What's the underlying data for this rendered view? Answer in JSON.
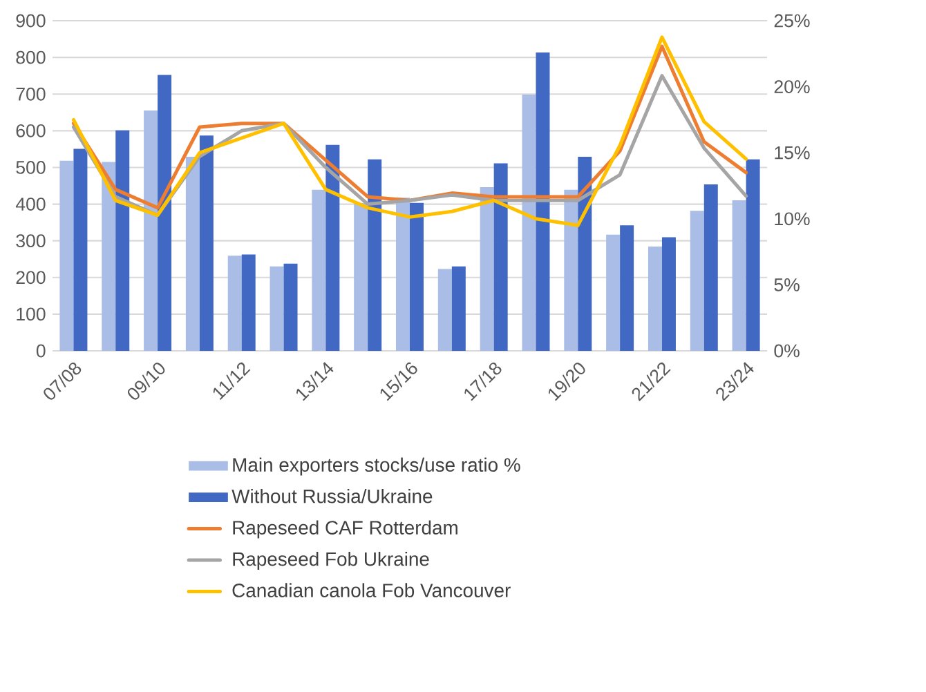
{
  "chart_data": {
    "type": "bar",
    "categories": [
      "07/08",
      null,
      "09/10",
      null,
      "11/12",
      null,
      "13/14",
      null,
      "15/16",
      null,
      "17/18",
      null,
      "19/20",
      null,
      "21/22",
      null,
      "23/24"
    ],
    "ylim": [
      0,
      900
    ],
    "yticks": [
      0,
      100,
      200,
      300,
      400,
      500,
      600,
      700,
      800,
      900
    ],
    "y2lim": [
      0,
      25
    ],
    "y2ticks": [
      {
        "value": 0,
        "label": "0%"
      },
      {
        "value": 5,
        "label": "5%"
      },
      {
        "value": 10,
        "label": "10%"
      },
      {
        "value": 15,
        "label": "15%"
      },
      {
        "value": 20,
        "label": "20%"
      },
      {
        "value": 25,
        "label": "25%"
      }
    ],
    "grid": "y",
    "legend": "bottom",
    "marker": "none",
    "series": [
      {
        "name": "Main exporters stocks/use ratio %",
        "axis": "y2",
        "color": "#a9bde6",
        "values": [
          14.4,
          14.3,
          18.2,
          14.7,
          7.2,
          6.4,
          12.2,
          11.2,
          11.6,
          6.2,
          12.4,
          19.4,
          12.2,
          8.8,
          7.9,
          10.6,
          11.4
        ]
      },
      {
        "name": "Without Russia/Ukraine",
        "axis": "y2",
        "color": "#4169c4",
        "values": [
          15.3,
          16.7,
          20.9,
          16.3,
          7.3,
          6.6,
          15.6,
          14.5,
          11.2,
          6.4,
          14.2,
          22.6,
          14.7,
          9.5,
          8.6,
          12.6,
          14.5
        ]
      },
      {
        "name": "Rapeseed CAF Rotterdam",
        "type": "line",
        "color": "#ed7d31",
        "values": [
          620,
          440,
          390,
          610,
          620,
          620,
          520,
          420,
          410,
          430,
          420,
          420,
          420,
          545,
          830,
          570,
          486
        ]
      },
      {
        "name": "Rapeseed Fob Ukraine",
        "type": "line",
        "color": "#a5a5a5",
        "values": [
          610,
          420,
          370,
          530,
          600,
          620,
          500,
          400,
          410,
          425,
          410,
          410,
          410,
          480,
          750,
          553,
          422
        ]
      },
      {
        "name": "Canadian canola Fob Vancouver",
        "type": "line",
        "color": "#ffc000",
        "values": [
          630,
          410,
          370,
          540,
          580,
          620,
          440,
          390,
          365,
          380,
          410,
          360,
          342,
          560,
          855,
          625,
          523
        ]
      }
    ]
  }
}
